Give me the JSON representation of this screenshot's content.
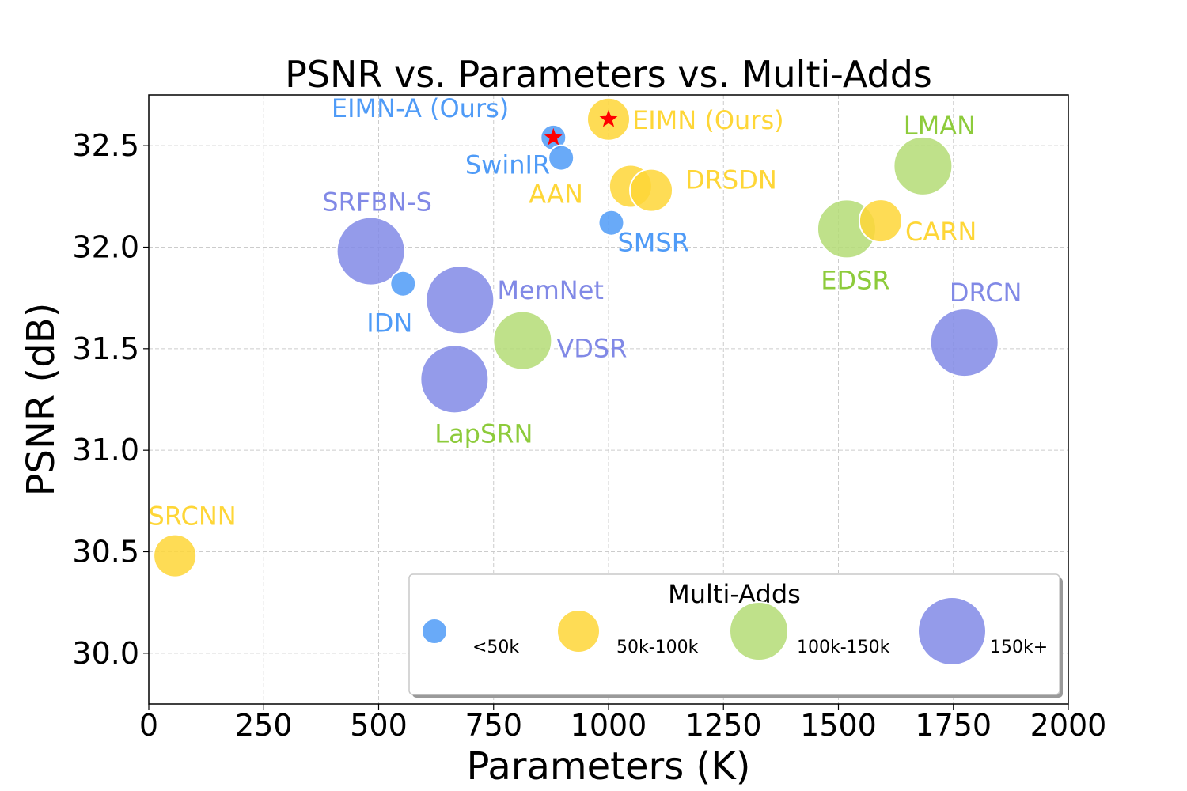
{
  "chart_data": {
    "type": "scatter",
    "title": "PSNR vs. Parameters vs. Multi-Adds",
    "xlabel": "Parameters (K)",
    "ylabel": "PSNR (dB)",
    "xlim": [
      0,
      2000
    ],
    "ylim": [
      29.75,
      32.75
    ],
    "x_ticks": [
      0,
      250,
      500,
      750,
      1000,
      1250,
      1500,
      1750,
      2000
    ],
    "y_ticks": [
      30.0,
      30.5,
      31.0,
      31.5,
      32.0,
      32.5
    ],
    "x_tick_labels": [
      "0",
      "250",
      "500",
      "750",
      "1000",
      "1250",
      "1500",
      "1750",
      "2000"
    ],
    "y_tick_labels": [
      "30.0",
      "30.5",
      "31.0",
      "31.5",
      "32.0",
      "32.5"
    ],
    "grid": true,
    "legend_title": "Multi-Adds",
    "legend_position": "lower-right",
    "categories": [
      {
        "key": "lt50",
        "name": "<50k",
        "color": "#4f9bf7"
      },
      {
        "key": "50to100",
        "name": "50k-100k",
        "color": "#fed637"
      },
      {
        "key": "100to150",
        "name": "100k-150k",
        "color": "#b4dc75"
      },
      {
        "key": "150plus",
        "name": "150k+",
        "color": "#8189e6"
      }
    ],
    "points": [
      {
        "name": "EIMN-A (Ours)",
        "x": 880,
        "y": 32.54,
        "category": "lt50",
        "star": true,
        "label_color": "#4f9bf7"
      },
      {
        "name": "EIMN (Ours)",
        "x": 1000,
        "y": 32.63,
        "category": "50to100",
        "star": true,
        "label_color": "#fed637"
      },
      {
        "name": "SwinIR",
        "x": 897,
        "y": 32.44,
        "category": "lt50",
        "label_color": "#4f9bf7"
      },
      {
        "name": "SMSR",
        "x": 1006,
        "y": 32.12,
        "category": "lt50",
        "label_color": "#4f9bf7"
      },
      {
        "name": "IDN",
        "x": 553,
        "y": 31.82,
        "category": "lt50",
        "label_color": "#4f9bf7"
      },
      {
        "name": "AAN",
        "x": 1048,
        "y": 32.3,
        "category": "50to100",
        "label_color": "#fed637"
      },
      {
        "name": "DRSDN",
        "x": 1093,
        "y": 32.28,
        "category": "50to100",
        "label_color": "#fed637"
      },
      {
        "name": "CARN",
        "x": 1592,
        "y": 32.13,
        "category": "50to100",
        "label_color": "#fed637"
      },
      {
        "name": "SRCNN",
        "x": 57,
        "y": 30.48,
        "category": "50to100",
        "label_color": "#fed637"
      },
      {
        "name": "LMAN",
        "x": 1684,
        "y": 32.4,
        "category": "100to150",
        "label_color": "#8dcb3b"
      },
      {
        "name": "EDSR",
        "x": 1518,
        "y": 32.09,
        "category": "100to150",
        "label_color": "#8dcb3b"
      },
      {
        "name": "VDSR",
        "x": 813,
        "y": 31.54,
        "category": "100to150",
        "label_color": "#8189e6"
      },
      {
        "name": "SRFBN-S",
        "x": 483,
        "y": 31.98,
        "category": "150plus",
        "label_color": "#8189e6"
      },
      {
        "name": "MemNet",
        "x": 677,
        "y": 31.74,
        "category": "150plus",
        "label_color": "#8189e6"
      },
      {
        "name": "LapSRN",
        "x": 665,
        "y": 31.35,
        "category": "150plus",
        "label_color": "#8dcb3b"
      },
      {
        "name": "DRCN",
        "x": 1774,
        "y": 31.53,
        "category": "150plus",
        "label_color": "#8189e6"
      }
    ]
  }
}
